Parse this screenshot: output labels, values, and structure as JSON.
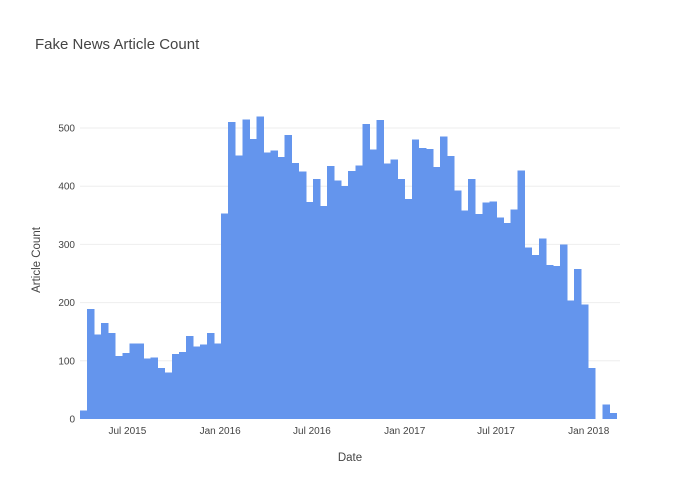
{
  "chart_data": {
    "type": "bar",
    "title": "Fake News Article Count",
    "xlabel": "Date",
    "ylabel": "Article Count",
    "bar_color": "#6495ED",
    "bin": "weekly (bars start on Sundays)",
    "x_range": [
      "2015-03-29",
      "2018-03-04"
    ],
    "x_ticks": [
      {
        "label": "Jul 2015",
        "date": "2015-07-01"
      },
      {
        "label": "Jan 2016",
        "date": "2016-01-01"
      },
      {
        "label": "Jul 2016",
        "date": "2016-07-01"
      },
      {
        "label": "Jan 2017",
        "date": "2017-01-01"
      },
      {
        "label": "Jul 2017",
        "date": "2017-07-01"
      },
      {
        "label": "Jan 2018",
        "date": "2018-01-01"
      }
    ],
    "ylim": [
      0,
      540
    ],
    "y_ticks": [
      0,
      100,
      200,
      300,
      400,
      500
    ],
    "grid": true,
    "x": [
      "2015-03-29",
      "2015-04-12",
      "2015-04-26",
      "2015-05-10",
      "2015-05-24",
      "2015-06-07",
      "2015-06-21",
      "2015-07-05",
      "2015-07-19",
      "2015-08-02",
      "2015-08-16",
      "2015-08-30",
      "2015-09-13",
      "2015-09-27",
      "2015-10-11",
      "2015-10-25",
      "2015-11-08",
      "2015-11-22",
      "2015-12-06",
      "2015-12-20",
      "2016-01-03",
      "2016-01-17",
      "2016-01-31",
      "2016-02-14",
      "2016-02-28",
      "2016-03-13",
      "2016-03-27",
      "2016-04-10",
      "2016-04-24",
      "2016-05-08",
      "2016-05-22",
      "2016-06-05",
      "2016-06-19",
      "2016-07-03",
      "2016-07-17",
      "2016-07-31",
      "2016-08-14",
      "2016-08-28",
      "2016-09-11",
      "2016-09-25",
      "2016-10-09",
      "2016-10-23",
      "2016-11-06",
      "2016-11-20",
      "2016-12-04",
      "2016-12-18",
      "2017-01-01",
      "2017-01-15",
      "2017-01-29",
      "2017-02-12",
      "2017-02-26",
      "2017-03-12",
      "2017-03-26",
      "2017-04-09",
      "2017-04-23",
      "2017-05-07",
      "2017-05-21",
      "2017-06-04",
      "2017-06-18",
      "2017-07-02",
      "2017-07-16",
      "2017-07-30",
      "2017-08-13",
      "2017-08-27",
      "2017-09-10",
      "2017-09-24",
      "2017-10-08",
      "2017-10-22",
      "2017-11-05",
      "2017-11-19",
      "2017-12-03",
      "2017-12-17",
      "2017-12-31",
      "2018-01-14",
      "2018-01-28",
      "2018-02-11"
    ],
    "values": [
      15,
      189,
      145,
      165,
      148,
      108,
      113,
      130,
      130,
      104,
      106,
      88,
      80,
      112,
      115,
      143,
      125,
      128,
      148,
      130,
      353,
      510,
      453,
      515,
      481,
      520,
      458,
      461,
      450,
      488,
      440,
      425,
      373,
      412,
      366,
      435,
      410,
      400,
      426,
      436,
      507,
      463,
      514,
      439,
      446,
      412,
      378,
      480,
      466,
      464,
      433,
      485,
      452,
      393,
      358,
      412,
      352,
      372,
      374,
      346,
      337,
      360,
      427,
      295,
      282,
      310,
      265,
      263,
      300,
      204,
      258,
      197,
      88,
      0,
      25,
      10
    ]
  }
}
